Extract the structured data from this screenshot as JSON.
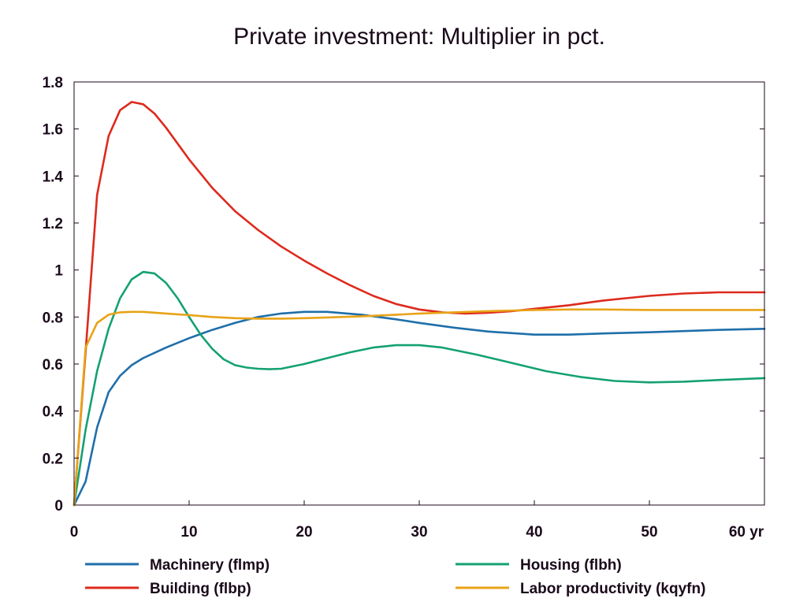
{
  "chart_data": {
    "type": "line",
    "title": "Private investment: Multiplier in pct.",
    "xlabel": "",
    "ylabel": "",
    "x_unit": "yr",
    "xlim": [
      0,
      60
    ],
    "ylim": [
      0,
      1.8
    ],
    "xticks": [
      "0",
      "10",
      "20",
      "30",
      "40",
      "50",
      "60 yr"
    ],
    "yticks": [
      "0",
      "0.2",
      "0.4",
      "0.6",
      "0.8",
      "1",
      "1.2",
      "1.4",
      "1.6",
      "1.8"
    ],
    "grid": false,
    "legend_position": "bottom",
    "series": [
      {
        "name": "Machinery (flmp)",
        "color": "#1f6faa",
        "x": [
          0,
          1,
          2,
          3,
          4,
          5,
          6,
          8,
          10,
          12,
          14,
          16,
          18,
          20,
          22,
          25,
          28,
          30,
          33,
          36,
          40,
          43,
          46,
          50,
          53,
          56,
          60
        ],
        "y": [
          0,
          0.1,
          0.33,
          0.48,
          0.55,
          0.595,
          0.625,
          0.67,
          0.71,
          0.745,
          0.775,
          0.8,
          0.815,
          0.822,
          0.822,
          0.81,
          0.79,
          0.775,
          0.755,
          0.738,
          0.725,
          0.725,
          0.73,
          0.735,
          0.74,
          0.745,
          0.75
        ]
      },
      {
        "name": "Building (flbp)",
        "color": "#dd2a1d",
        "x": [
          0,
          1,
          2,
          3,
          4,
          5,
          6,
          7,
          8,
          10,
          12,
          14,
          16,
          18,
          20,
          22,
          24,
          26,
          28,
          30,
          32,
          34,
          36,
          38,
          40,
          43,
          46,
          50,
          53,
          56,
          60
        ],
        "y": [
          0,
          0.65,
          1.32,
          1.57,
          1.68,
          1.715,
          1.705,
          1.665,
          1.605,
          1.47,
          1.35,
          1.25,
          1.17,
          1.1,
          1.04,
          0.985,
          0.935,
          0.89,
          0.855,
          0.832,
          0.82,
          0.815,
          0.818,
          0.825,
          0.835,
          0.85,
          0.87,
          0.89,
          0.9,
          0.905,
          0.905
        ]
      },
      {
        "name": "Housing (flbh)",
        "color": "#14a173",
        "x": [
          0,
          1,
          2,
          3,
          4,
          5,
          6,
          7,
          8,
          9,
          10,
          11,
          12,
          13,
          14,
          15,
          16,
          17,
          18,
          20,
          22,
          24,
          26,
          28,
          30,
          32,
          35,
          38,
          41,
          44,
          47,
          50,
          53,
          56,
          60
        ],
        "y": [
          0,
          0.32,
          0.57,
          0.75,
          0.88,
          0.96,
          0.992,
          0.985,
          0.945,
          0.88,
          0.8,
          0.725,
          0.665,
          0.62,
          0.595,
          0.585,
          0.58,
          0.578,
          0.58,
          0.6,
          0.625,
          0.65,
          0.67,
          0.68,
          0.68,
          0.67,
          0.64,
          0.605,
          0.57,
          0.545,
          0.528,
          0.522,
          0.525,
          0.532,
          0.54
        ]
      },
      {
        "name": "Labor productivity (kqyfn)",
        "color": "#e8a317",
        "x": [
          0,
          1,
          2,
          3,
          4,
          5,
          6,
          8,
          10,
          12,
          14,
          16,
          18,
          20,
          22,
          25,
          28,
          30,
          33,
          36,
          40,
          43,
          46,
          50,
          53,
          56,
          60
        ],
        "y": [
          0,
          0.67,
          0.775,
          0.81,
          0.82,
          0.822,
          0.822,
          0.815,
          0.808,
          0.8,
          0.795,
          0.793,
          0.793,
          0.795,
          0.798,
          0.803,
          0.81,
          0.815,
          0.82,
          0.825,
          0.83,
          0.832,
          0.832,
          0.83,
          0.83,
          0.83,
          0.83
        ]
      }
    ]
  }
}
